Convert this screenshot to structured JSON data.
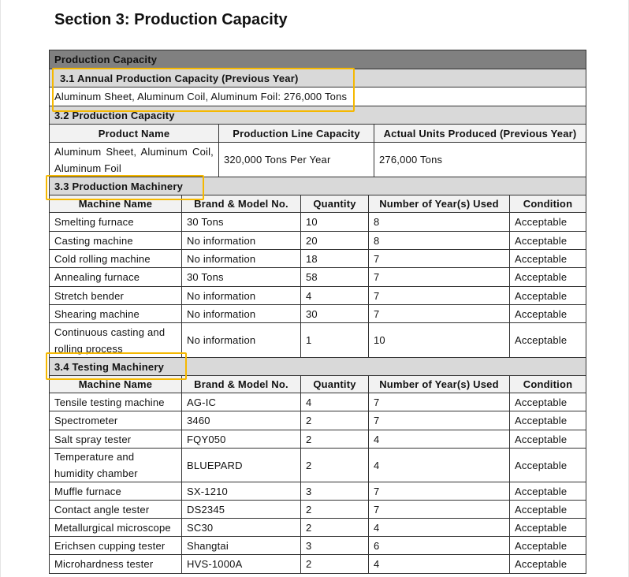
{
  "title": "Section 3: Production Capacity",
  "table_title": "Production Capacity",
  "s31": {
    "heading": "3.1 Annual Production Capacity (Previous Year)",
    "value": "Aluminum Sheet, Aluminum Coil, Aluminum Foil: 276,000 Tons"
  },
  "s32": {
    "heading": "3.2 Production Capacity",
    "headers": [
      "Product Name",
      "Production Line Capacity",
      "Actual Units Produced (Previous Year)"
    ],
    "row": [
      "Aluminum Sheet, Aluminum Coil, Aluminum Foil",
      "320,000 Tons Per Year",
      "276,000 Tons"
    ]
  },
  "s33": {
    "heading": "3.3 Production Machinery",
    "headers": [
      "Machine Name",
      "Brand & Model No.",
      "Quantity",
      "Number of Year(s) Used",
      "Condition"
    ],
    "rows": [
      [
        "Smelting furnace",
        "30 Tons",
        "10",
        "8",
        "Acceptable"
      ],
      [
        "Casting machine",
        "No information",
        "20",
        "8",
        "Acceptable"
      ],
      [
        "Cold rolling machine",
        "No information",
        "18",
        "7",
        "Acceptable"
      ],
      [
        "Annealing furnace",
        "30 Tons",
        "58",
        "7",
        "Acceptable"
      ],
      [
        "Stretch bender",
        "No information",
        "4",
        "7",
        "Acceptable"
      ],
      [
        "Shearing machine",
        "No information",
        "30",
        "7",
        "Acceptable"
      ],
      [
        "Continuous casting and rolling process",
        "No information",
        "1",
        "10",
        "Acceptable"
      ]
    ]
  },
  "s34": {
    "heading": "3.4 Testing Machinery",
    "headers": [
      "Machine Name",
      "Brand & Model No.",
      "Quantity",
      "Number of Year(s) Used",
      "Condition"
    ],
    "rows": [
      [
        "Tensile testing machine",
        "AG-IC",
        "4",
        "7",
        "Acceptable"
      ],
      [
        "Spectrometer",
        "3460",
        "2",
        "7",
        "Acceptable"
      ],
      [
        "Salt spray tester",
        "FQY050",
        "2",
        "4",
        "Acceptable"
      ],
      [
        "Temperature and humidity chamber",
        "BLUEPARD",
        "2",
        "4",
        "Acceptable"
      ],
      [
        "Muffle furnace",
        "SX-1210",
        "3",
        "7",
        "Acceptable"
      ],
      [
        "Contact angle tester",
        "DS2345",
        "2",
        "7",
        "Acceptable"
      ],
      [
        "Metallurgical microscope",
        "SC30",
        "2",
        "4",
        "Acceptable"
      ],
      [
        "Erichsen cupping tester",
        "Shangtai",
        "3",
        "6",
        "Acceptable"
      ],
      [
        "Microhardness tester",
        "HVS-1000A",
        "2",
        "4",
        "Acceptable"
      ]
    ]
  },
  "highlight_color": "#f5b800"
}
